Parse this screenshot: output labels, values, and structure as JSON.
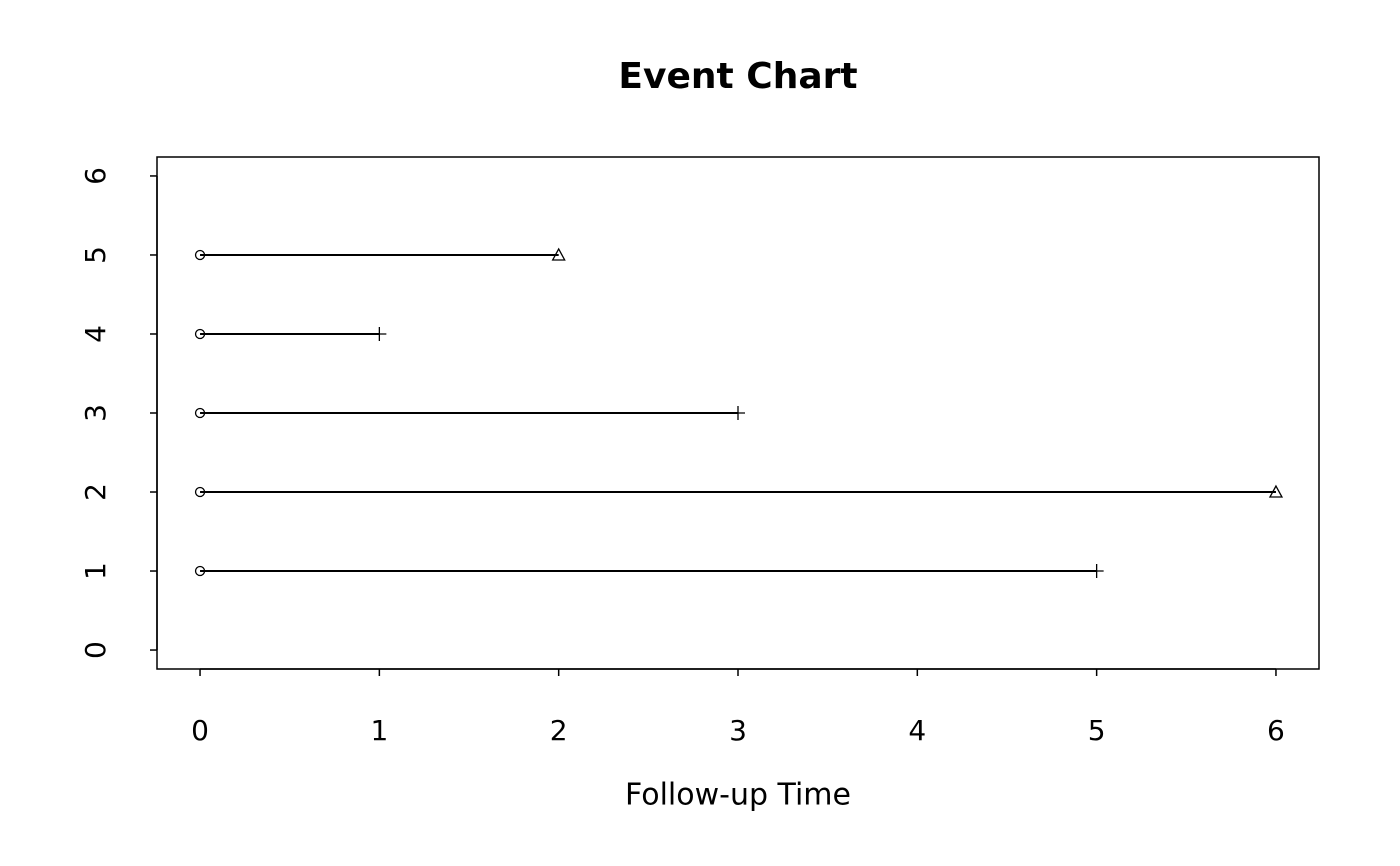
{
  "chart_data": {
    "type": "event",
    "title": "Event Chart",
    "x_label": "Follow-up Time",
    "y": [
      1,
      2,
      3,
      4,
      5
    ],
    "start": [
      0,
      0,
      0,
      0,
      0
    ],
    "end": [
      5,
      6,
      3,
      1,
      2
    ],
    "start_marker": "circle",
    "end_markers": [
      "plus",
      "triangle",
      "plus",
      "plus",
      "triangle"
    ],
    "color": "#000000",
    "xlim": [
      -0.24,
      6.24
    ],
    "xticks": [
      0,
      1,
      2,
      3,
      4,
      5,
      6
    ],
    "ylim": [
      -0.24,
      6.24
    ],
    "yticks": [
      0,
      1,
      2,
      3,
      4,
      5,
      6
    ]
  }
}
